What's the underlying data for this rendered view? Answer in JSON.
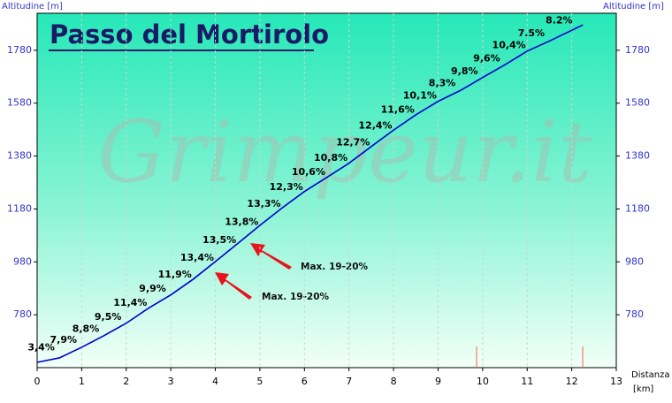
{
  "chart_data": {
    "type": "line",
    "title": "Passo del Mortirolo",
    "watermark": "Grimpeur.it",
    "y_label": "Altitudine [m]",
    "y2_label": "Altitudine [m]",
    "x_label": "Distanza",
    "x_unit": "[km]",
    "x": [
      0,
      0.5,
      1,
      1.5,
      2,
      2.5,
      3,
      3.5,
      4,
      4.5,
      5,
      5.5,
      6,
      6.5,
      7,
      7.5,
      8,
      8.5,
      9,
      9.5,
      10,
      10.5,
      11,
      11.5,
      12.25
    ],
    "series": [
      {
        "name": "Altitudine",
        "color": "#0000cc",
        "values": [
          600,
          617,
          657,
          701,
          748,
          805,
          855,
          914,
          981,
          1049,
          1118,
          1184,
          1246,
          1299,
          1353,
          1416,
          1478,
          1536,
          1587,
          1628,
          1677,
          1725,
          1777,
          1815,
          1876
        ]
      }
    ],
    "segment_labels": [
      "3,4%",
      "7,9%",
      "8,8%",
      "9,5%",
      "11,4%",
      "9,9%",
      "11,9%",
      "13,4%",
      "13,5%",
      "13,8%",
      "13,3%",
      "12,3%",
      "10,6%",
      "10,8%",
      "12,7%",
      "12,4%",
      "11,6%",
      "10,1%",
      "8,3%",
      "9,8%",
      "9,6%",
      "10,4%",
      "7.5%",
      "8.2%"
    ],
    "annotations": [
      "Max. 19-20%",
      "Max. 19-20%"
    ],
    "xlim": [
      0,
      13
    ],
    "xticks": [
      0,
      1,
      2,
      3,
      4,
      5,
      6,
      7,
      8,
      9,
      10,
      11,
      12,
      13
    ],
    "ylim": [
      580,
      1920
    ],
    "yticks": [
      780,
      980,
      1180,
      1380,
      1580,
      1780
    ],
    "y2lim": [
      580,
      1920
    ],
    "y2ticks": [
      780,
      980,
      1180,
      1380,
      1580,
      1780
    ],
    "grid": true
  }
}
